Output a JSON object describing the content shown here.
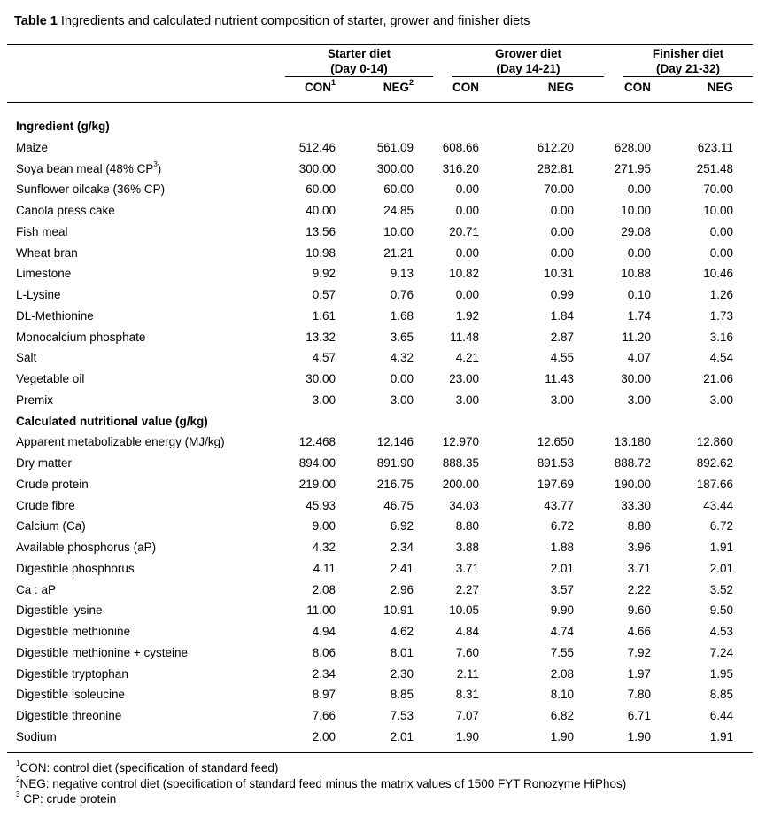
{
  "title": {
    "label": "Table 1",
    "text": " Ingredients and calculated nutrient composition of starter, grower and finisher diets"
  },
  "groups": [
    {
      "name": "Starter diet",
      "days": "(Day 0-14)"
    },
    {
      "name": "Grower diet",
      "days": "(Day 14-21)"
    },
    {
      "name": "Finisher diet",
      "days": "(Day 21-32)"
    }
  ],
  "subheaders": [
    {
      "label": "CON",
      "sup": "1"
    },
    {
      "label": "NEG",
      "sup": "2"
    },
    {
      "label": "CON",
      "sup": ""
    },
    {
      "label": "NEG",
      "sup": ""
    },
    {
      "label": "CON",
      "sup": ""
    },
    {
      "label": "NEG",
      "sup": ""
    }
  ],
  "sections": [
    {
      "title": "Ingredient (g/kg)",
      "rows": [
        {
          "label": "Maize",
          "values": [
            "512.46",
            "561.09",
            "608.66",
            "612.20",
            "628.00",
            "623.11"
          ]
        },
        {
          "label": "Soya bean meal (48% CP",
          "sup": "3",
          "label_end": ")",
          "values": [
            "300.00",
            "300.00",
            "316.20",
            "282.81",
            "271.95",
            "251.48"
          ]
        },
        {
          "label": "Sunflower oilcake (36% CP)",
          "values": [
            "60.00",
            "60.00",
            "0.00",
            "70.00",
            "0.00",
            "70.00"
          ]
        },
        {
          "label": "Canola press cake",
          "values": [
            "40.00",
            "24.85",
            "0.00",
            "0.00",
            "10.00",
            "10.00"
          ]
        },
        {
          "label": "Fish meal",
          "values": [
            "13.56",
            "10.00",
            "20.71",
            "0.00",
            "29.08",
            "0.00"
          ]
        },
        {
          "label": "Wheat bran",
          "values": [
            "10.98",
            "21.21",
            "0.00",
            "0.00",
            "0.00",
            "0.00"
          ]
        },
        {
          "label": "Limestone",
          "values": [
            "9.92",
            "9.13",
            "10.82",
            "10.31",
            "10.88",
            "10.46"
          ]
        },
        {
          "label": "L-Lysine",
          "values": [
            "0.57",
            "0.76",
            "0.00",
            "0.99",
            "0.10",
            "1.26"
          ]
        },
        {
          "label": "DL-Methionine",
          "values": [
            "1.61",
            "1.68",
            "1.92",
            "1.84",
            "1.74",
            "1.73"
          ]
        },
        {
          "label": "Monocalcium phosphate",
          "values": [
            "13.32",
            "3.65",
            "11.48",
            "2.87",
            "11.20",
            "3.16"
          ]
        },
        {
          "label": "Salt",
          "values": [
            "4.57",
            "4.32",
            "4.21",
            "4.55",
            "4.07",
            "4.54"
          ]
        },
        {
          "label": "Vegetable oil",
          "values": [
            "30.00",
            "0.00",
            "23.00",
            "11.43",
            "30.00",
            "21.06"
          ]
        },
        {
          "label": "Premix",
          "values": [
            "3.00",
            "3.00",
            "3.00",
            "3.00",
            "3.00",
            "3.00"
          ]
        }
      ]
    },
    {
      "title": "Calculated nutritional value (g/kg)",
      "rows": [
        {
          "label": "Apparent metabolizable energy (MJ/kg)",
          "values": [
            "12.468",
            "12.146",
            "12.970",
            "12.650",
            "13.180",
            "12.860"
          ]
        },
        {
          "label": "Dry matter",
          "values": [
            "894.00",
            "891.90",
            "888.35",
            "891.53",
            "888.72",
            "892.62"
          ]
        },
        {
          "label": "Crude protein",
          "values": [
            "219.00",
            "216.75",
            "200.00",
            "197.69",
            "190.00",
            "187.66"
          ]
        },
        {
          "label": "Crude fibre",
          "values": [
            "45.93",
            "46.75",
            "34.03",
            "43.77",
            "33.30",
            "43.44"
          ]
        },
        {
          "label": "Calcium (Ca)",
          "values": [
            "9.00",
            "6.92",
            "8.80",
            "6.72",
            "8.80",
            "6.72"
          ]
        },
        {
          "label": "Available phosphorus (aP)",
          "values": [
            "4.32",
            "2.34",
            "3.88",
            "1.88",
            "3.96",
            "1.91"
          ]
        },
        {
          "label": "Digestible phosphorus",
          "values": [
            "4.11",
            "2.41",
            "3.71",
            "2.01",
            "3.71",
            "2.01"
          ]
        },
        {
          "label": "Ca : aP",
          "values": [
            "2.08",
            "2.96",
            "2.27",
            "3.57",
            "2.22",
            "3.52"
          ]
        },
        {
          "label": "Digestible lysine",
          "values": [
            "11.00",
            "10.91",
            "10.05",
            "9.90",
            "9.60",
            "9.50"
          ]
        },
        {
          "label": "Digestible methionine",
          "values": [
            "4.94",
            "4.62",
            "4.84",
            "4.74",
            "4.66",
            "4.53"
          ]
        },
        {
          "label": "Digestible methionine + cysteine",
          "values": [
            "8.06",
            "8.01",
            "7.60",
            "7.55",
            "7.92",
            "7.24"
          ]
        },
        {
          "label": "Digestible tryptophan",
          "values": [
            "2.34",
            "2.30",
            "2.11",
            "2.08",
            "1.97",
            "1.95"
          ]
        },
        {
          "label": "Digestible isoleucine",
          "values": [
            "8.97",
            "8.85",
            "8.31",
            "8.10",
            "7.80",
            "8.85"
          ]
        },
        {
          "label": "Digestible threonine",
          "values": [
            "7.66",
            "7.53",
            "7.07",
            "6.82",
            "6.71",
            "6.44"
          ]
        },
        {
          "label": "Sodium",
          "values": [
            "2.00",
            "2.01",
            "1.90",
            "1.90",
            "1.90",
            "1.91"
          ]
        }
      ]
    }
  ],
  "footnotes": [
    {
      "sup": "1",
      "text": "CON: control diet (specification of standard feed)"
    },
    {
      "sup": "2",
      "text": "NEG: negative control diet (specification of standard feed minus the matrix values of 1500 FYT Ronozyme HiPhos)"
    },
    {
      "sup": "3",
      "text": " CP: crude protein"
    }
  ]
}
